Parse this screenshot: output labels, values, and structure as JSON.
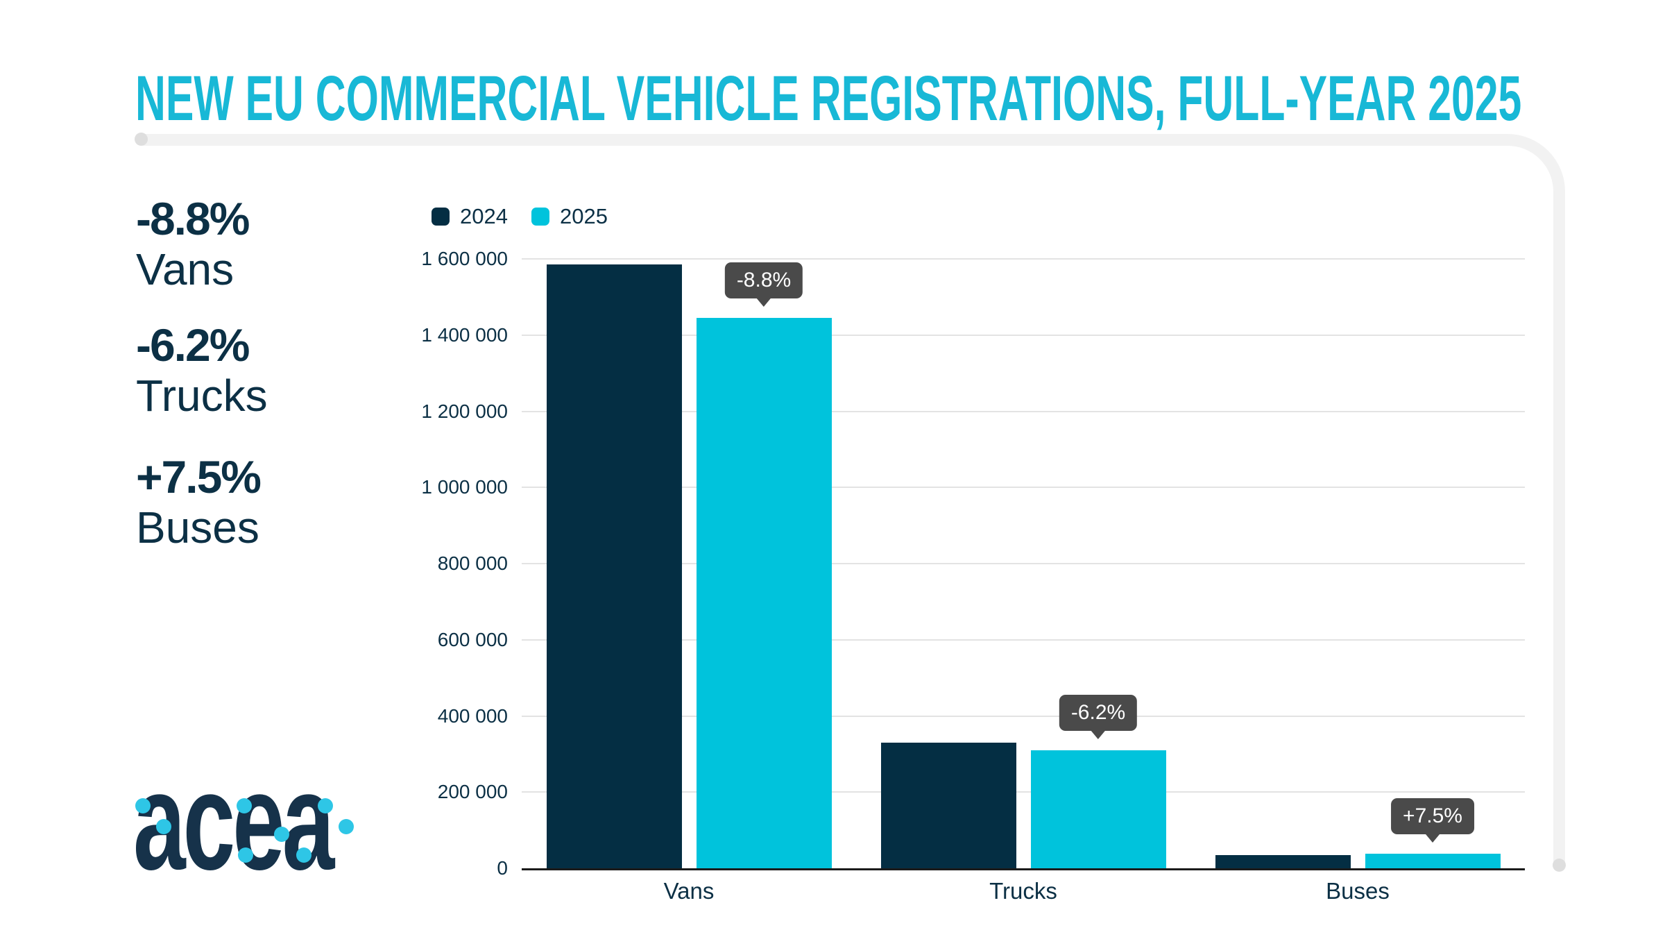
{
  "title": "NEW EU COMMERCIAL VEHICLE REGISTRATIONS, FULL-YEAR 2025",
  "stats": [
    {
      "percent": "-8.8%",
      "label": "Vans"
    },
    {
      "percent": "-6.2%",
      "label": "Trucks"
    },
    {
      "percent": "+7.5%",
      "label": "Buses"
    }
  ],
  "logo": {
    "text": "acea"
  },
  "colors": {
    "navy": "#042e43",
    "cyan": "#00c3dc",
    "title_cyan": "#18b8d6",
    "tooltip_bg": "#4a4a4a",
    "gridline": "#e3e3e3",
    "frame_gray": "#f2f2f2",
    "text_navy": "#0c3045"
  },
  "chart_data": {
    "type": "bar",
    "title": "NEW EU COMMERCIAL VEHICLE REGISTRATIONS, FULL-YEAR 2025",
    "categories": [
      "Vans",
      "Trucks",
      "Buses"
    ],
    "series": [
      {
        "name": "2024",
        "color": "#042e43",
        "values": [
          1585000,
          330000,
          35000
        ]
      },
      {
        "name": "2025",
        "color": "#00c3dc",
        "values": [
          1446000,
          309500,
          37600
        ]
      }
    ],
    "annotations": [
      {
        "category": "Vans",
        "series": "2025",
        "text": "-8.8%"
      },
      {
        "category": "Trucks",
        "series": "2025",
        "text": "-6.2%"
      },
      {
        "category": "Buses",
        "series": "2025",
        "text": "+7.5%"
      }
    ],
    "xlabel": "",
    "ylabel": "",
    "ylim": [
      0,
      1600000
    ],
    "ytick_interval": 200000,
    "ytick_labels": [
      "0",
      "200 000",
      "400 000",
      "600 000",
      "800 000",
      "1 000 000",
      "1 200 000",
      "1 400 000",
      "1 600 000"
    ],
    "grid": true,
    "legend_position": "top-left"
  }
}
